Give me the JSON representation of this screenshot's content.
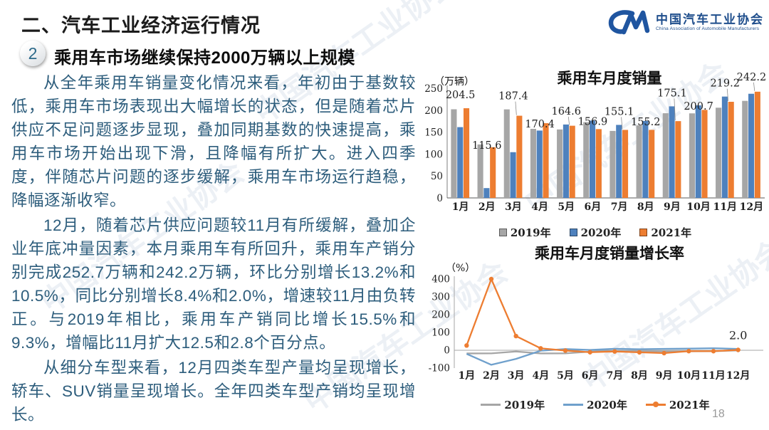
{
  "header": {
    "section_title": "二、汽车工业经济运行情况",
    "badge_number": "2",
    "subtitle": "乘用车市场继续保持2000万辆以上规模"
  },
  "logo": {
    "name_cn": "中国汽车工业协会",
    "name_en": "China Association of Automobile Manufacturers"
  },
  "watermark": {
    "text": "中国汽车工业协会"
  },
  "body": {
    "paragraphs": [
      "从全年乘用车销量变化情况来看，年初由于基数较低，乘用车市场表现出大幅增长的状态，但是随着芯片供应不足问题逐步显现，叠加同期基数的快速提高，乘用车市场开始出现下滑，且降幅有所扩大。进入四季度，伴随芯片问题的逐步缓解，乘用车市场运行趋稳，降幅逐渐收窄。",
      "12月，随着芯片供应问题较11月有所缓解，叠加企业年底冲量因素，本月乘用车有所回升，乘用车产销分别完成252.7万辆和242.2万辆，环比分别增长13.2%和10.5%，同比分别增长8.4%和2.0%，增速较11月由负转正。与2019年相比，乘用车产销同比增长15.5%和9.3%，增幅比11月扩大12.5和2.8个百分点。",
      "从细分车型来看，12月四类车型产量均呈现增长，轿车、SUV销量呈现增长。全年四类车型产销均呈现增长。"
    ]
  },
  "page": {
    "number": "18"
  },
  "colors": {
    "series_2019": "#A6A6A6",
    "series_2020": "#4E81BD",
    "series_2021": "#ED7D31",
    "body_text": "#2D5D7C",
    "logo_blue": "#1F4E8C"
  },
  "chart_data": [
    {
      "type": "bar",
      "title": "乘用车月度销量",
      "unit_label": "（万辆）",
      "categories": [
        "1月",
        "2月",
        "3月",
        "4月",
        "5月",
        "6月",
        "7月",
        "8月",
        "9月",
        "10月",
        "11月",
        "12月"
      ],
      "series": [
        {
          "name": "2019年",
          "color": "#A6A6A6",
          "values": [
            202.1,
            121.9,
            201.9,
            157.5,
            156.1,
            172.8,
            152.8,
            165.3,
            193.1,
            192.8,
            205.7,
            221.3
          ]
        },
        {
          "name": "2020年",
          "color": "#4E81BD",
          "values": [
            161.4,
            22.4,
            104.3,
            153.6,
            167.4,
            176.4,
            166.5,
            175.5,
            208.8,
            211.0,
            231.1,
            237.5
          ]
        },
        {
          "name": "2021年",
          "color": "#ED7D31",
          "values": [
            204.5,
            115.6,
            187.4,
            170.4,
            164.6,
            156.9,
            155.1,
            155.2,
            175.1,
            200.7,
            219.2,
            242.2
          ],
          "data_labels": true
        }
      ],
      "ylim": [
        0,
        250
      ],
      "yticks": [
        0,
        50,
        100,
        150,
        200,
        250
      ],
      "legend_position": "bottom",
      "grid": false
    },
    {
      "type": "line",
      "title": "乘用车月度销量增长率",
      "unit_label": "（%）",
      "categories": [
        "1月",
        "2月",
        "3月",
        "4月",
        "5月",
        "6月",
        "7月",
        "8月",
        "9月",
        "10月",
        "11月",
        "12月"
      ],
      "series": [
        {
          "name": "2019年",
          "color": "#A6A6A6",
          "values": [
            -17.7,
            -17.4,
            -6.9,
            -17.7,
            -17.4,
            -7.8,
            -3.9,
            -6.9,
            -6.3,
            -5.8,
            -5.4,
            -0.9
          ]
        },
        {
          "name": "2020年",
          "color": "#6FA0CC",
          "values": [
            -20.2,
            -81.7,
            -48.4,
            -2.6,
            7.0,
            1.8,
            8.5,
            6.0,
            8.0,
            9.3,
            11.6,
            7.2
          ]
        },
        {
          "name": "2021年",
          "color": "#ED7D31",
          "values": [
            26.8,
            400.0,
            79.7,
            10.9,
            -1.7,
            -11.1,
            -6.8,
            -11.6,
            -16.1,
            -4.9,
            -5.1,
            2.0
          ],
          "marker": true
        }
      ],
      "ylim": [
        -100,
        400
      ],
      "yticks": [
        400,
        300,
        200,
        100,
        0,
        -100
      ],
      "annotation": {
        "text": "2.0",
        "series": "2021年",
        "category": "12月"
      },
      "legend_position": "bottom",
      "grid": false
    }
  ]
}
